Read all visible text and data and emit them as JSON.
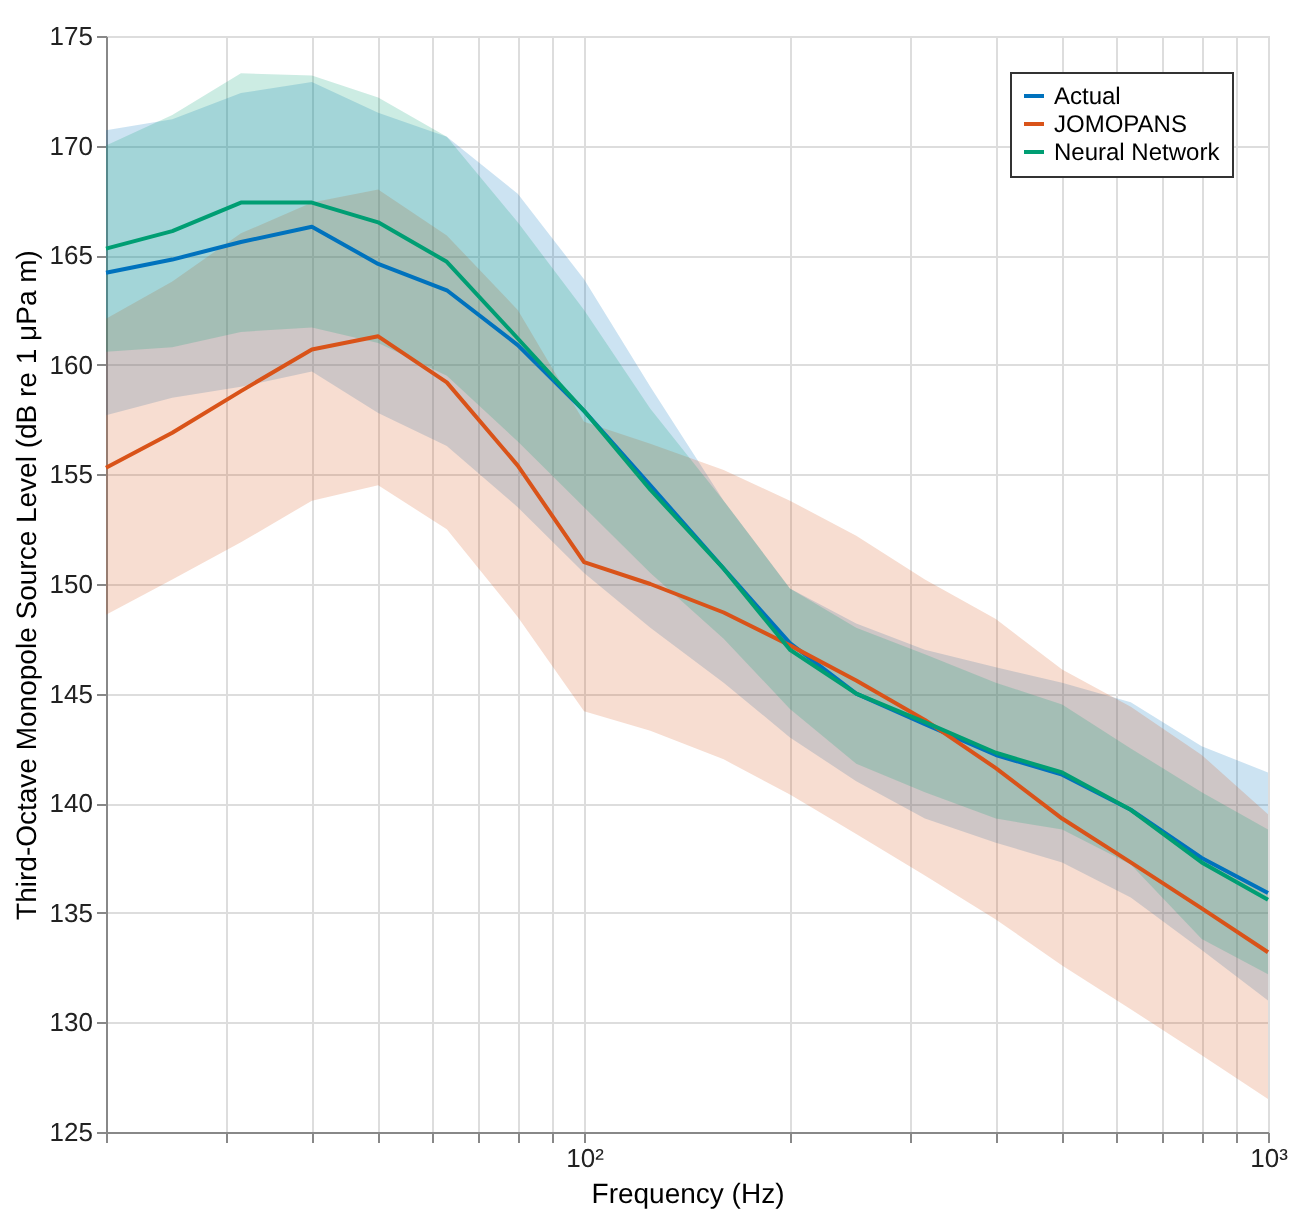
{
  "chart_data": {
    "type": "line",
    "xlabel": "Frequency (Hz)",
    "ylabel": "Third-Octave Monopole Source Level (dB re 1 μPa m)",
    "x": [
      20,
      25,
      31.5,
      40,
      50,
      63,
      80,
      100,
      125,
      160,
      200,
      250,
      315,
      400,
      500,
      630,
      800,
      1000
    ],
    "series": [
      {
        "name": "Actual",
        "color": "#0072bd",
        "values": [
          164.2,
          164.8,
          165.6,
          166.3,
          164.6,
          163.4,
          160.9,
          157.9,
          154.5,
          150.7,
          147.3,
          145.0,
          143.6,
          142.2,
          141.3,
          139.7,
          137.5,
          135.9
        ],
        "lower": [
          157.7,
          158.5,
          159.0,
          159.7,
          157.8,
          156.3,
          153.5,
          150.5,
          148.0,
          145.5,
          143.0,
          141.0,
          139.3,
          138.2,
          137.3,
          135.7,
          133.3,
          131.0
        ],
        "upper": [
          170.7,
          171.2,
          172.4,
          172.9,
          171.5,
          170.4,
          167.8,
          163.9,
          159.0,
          153.8,
          149.8,
          148.2,
          147.0,
          146.2,
          145.5,
          144.6,
          142.6,
          141.4
        ]
      },
      {
        "name": "JOMOPANS",
        "color": "#d95319",
        "values": [
          155.3,
          156.9,
          158.8,
          160.7,
          161.3,
          159.2,
          155.4,
          151.0,
          150.0,
          148.7,
          147.2,
          145.6,
          143.8,
          141.6,
          139.3,
          137.3,
          135.2,
          133.2
        ],
        "lower": [
          148.6,
          150.2,
          151.9,
          153.8,
          154.5,
          152.5,
          148.5,
          144.2,
          143.3,
          142.0,
          140.4,
          138.6,
          136.7,
          134.7,
          132.6,
          130.6,
          128.5,
          126.5
        ],
        "upper": [
          162.1,
          163.8,
          166.0,
          167.4,
          168.0,
          165.9,
          162.5,
          157.4,
          156.4,
          155.2,
          153.8,
          152.2,
          150.2,
          148.4,
          146.1,
          144.4,
          142.2,
          139.5
        ]
      },
      {
        "name": "Neural Network",
        "color": "#009e73",
        "values": [
          165.3,
          166.1,
          167.4,
          167.4,
          166.5,
          164.7,
          161.2,
          157.9,
          154.3,
          150.7,
          147.0,
          145.0,
          143.7,
          142.3,
          141.4,
          139.7,
          137.3,
          135.6
        ],
        "lower": [
          160.6,
          160.8,
          161.5,
          161.7,
          161.0,
          159.5,
          156.5,
          153.5,
          150.5,
          147.5,
          144.3,
          141.8,
          140.5,
          139.3,
          138.8,
          137.2,
          133.8,
          132.2
        ],
        "upper": [
          170.0,
          171.4,
          173.3,
          173.2,
          172.2,
          170.4,
          166.5,
          162.5,
          158.0,
          153.8,
          149.8,
          148.0,
          146.8,
          145.5,
          144.5,
          142.5,
          140.5,
          138.8
        ]
      }
    ],
    "log": "x",
    "xlim": [
      20,
      1000
    ],
    "xticks": [
      {
        "value": 20,
        "label": null
      },
      {
        "value": 30,
        "label": null
      },
      {
        "value": 40,
        "label": null
      },
      {
        "value": 50,
        "label": null
      },
      {
        "value": 60,
        "label": null
      },
      {
        "value": 70,
        "label": null
      },
      {
        "value": 80,
        "label": null
      },
      {
        "value": 90,
        "label": null
      },
      {
        "value": 100,
        "label": "10²"
      },
      {
        "value": 200,
        "label": null
      },
      {
        "value": 300,
        "label": null
      },
      {
        "value": 400,
        "label": null
      },
      {
        "value": 500,
        "label": null
      },
      {
        "value": 600,
        "label": null
      },
      {
        "value": 700,
        "label": null
      },
      {
        "value": 800,
        "label": null
      },
      {
        "value": 900,
        "label": null
      },
      {
        "value": 1000,
        "label": "10³"
      }
    ],
    "ylim": [
      125,
      175
    ],
    "yticks": [
      125,
      130,
      135,
      140,
      145,
      150,
      155,
      160,
      165,
      170,
      175
    ],
    "grid": true,
    "legend": "top right",
    "line_style": "solid"
  }
}
